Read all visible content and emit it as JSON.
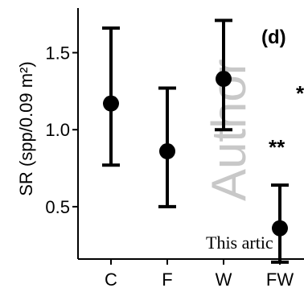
{
  "chart_data": {
    "type": "scatter",
    "title": "",
    "panel_label": "(d)",
    "xlabel": "",
    "ylabel": "SR (spp/0.09 m²)",
    "categories": [
      "C",
      "F",
      "W",
      "FW"
    ],
    "yticks": [
      "0.5",
      "1.0",
      "1.5"
    ],
    "ytick_values": [
      0.5,
      1.0,
      1.5
    ],
    "ylim": [
      0.16,
      1.79
    ],
    "series": [
      {
        "values": [
          1.17,
          0.86,
          1.33,
          0.36
        ],
        "lower": [
          0.77,
          0.5,
          1.0,
          0.14
        ],
        "upper": [
          1.66,
          1.27,
          1.71,
          0.64
        ]
      }
    ],
    "annotations": [
      {
        "text": "**",
        "near": "FW"
      },
      {
        "text": "*",
        "near": "FW-right"
      }
    ],
    "grid": false,
    "legend": "none"
  },
  "overlay": {
    "watermark_text": "Author",
    "footer_text": "This artic"
  },
  "colors": {
    "marks": "#000000",
    "watermark": "#c8c8c8"
  }
}
